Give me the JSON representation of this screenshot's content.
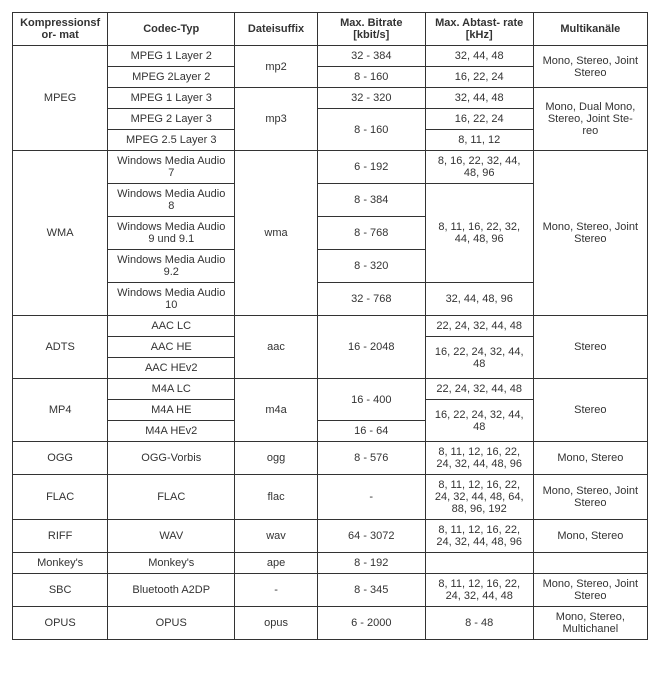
{
  "table": {
    "headers": {
      "format": "Kompressionsfor-\nmat",
      "codec": "Codec-Typ",
      "suffix": "Dateisuffix",
      "bitrate": "Max. Bitrate\n[kbit/s]",
      "samplerate": "Max. Abtast-\nrate [kHz]",
      "multi": "Multikanäle"
    },
    "mpeg": {
      "format": "MPEG",
      "codec1": "MPEG 1 Layer 2",
      "codec2": "MPEG 2Layer 2",
      "codec3": "MPEG 1 Layer 3",
      "codec4": "MPEG 2 Layer 3",
      "codec5": "MPEG 2.5 Layer 3",
      "suffix1": "mp2",
      "suffix2": "mp3",
      "bitrate1": "32 - 384",
      "bitrate2": "8 - 160",
      "bitrate3": "32 - 320",
      "bitrate4": "8 - 160",
      "sample1": "32, 44, 48",
      "sample2": "16, 22, 24",
      "sample3": "32, 44, 48",
      "sample4": "16, 22, 24",
      "sample5": "8, 11, 12",
      "multi1": "Mono, Stereo, Joint Stereo",
      "multi2": "Mono, Dual Mono, Stereo, Joint Ste-\nreo"
    },
    "wma": {
      "format": "WMA",
      "codec1": "Windows Media Audio 7",
      "codec2": "Windows Media Audio 8",
      "codec3": "Windows Media Audio 9 und 9.1",
      "codec4": "Windows Media Audio 9.2",
      "codec5": "Windows Media Audio 10",
      "suffix": "wma",
      "bitrate1": "6 - 192",
      "bitrate2": "8 - 384",
      "bitrate3": "8 - 768",
      "bitrate4": "8 - 320",
      "bitrate5": "32 - 768",
      "sample1": "8, 16, 22, 32, 44, 48, 96",
      "sample2": "8, 11, 16, 22, 32, 44, 48, 96",
      "sample3": "32, 44, 48, 96",
      "multi": "Mono, Stereo, Joint Stereo"
    },
    "adts": {
      "format": "ADTS",
      "codec1": "AAC LC",
      "codec2": "AAC HE",
      "codec3": "AAC HEv2",
      "suffix": "aac",
      "bitrate": "16 - 2048",
      "sample1": "22, 24, 32, 44, 48",
      "sample2": "16, 22, 24, 32, 44, 48",
      "multi": "Stereo"
    },
    "mp4": {
      "format": "MP4",
      "codec1": "M4A LC",
      "codec2": "M4A HE",
      "codec3": "M4A HEv2",
      "suffix": "m4a",
      "bitrate1": "16 - 400",
      "bitrate2": "16 - 64",
      "sample1": "22, 24, 32, 44, 48",
      "sample2": "16, 22, 24, 32, 44, 48",
      "multi": "Stereo"
    },
    "ogg": {
      "format": "OGG",
      "codec": "OGG-Vorbis",
      "suffix": "ogg",
      "bitrate": "8 - 576",
      "sample": "8, 11, 12, 16, 22, 24, 32, 44, 48, 96",
      "multi": "Mono, Stereo"
    },
    "flac": {
      "format": "FLAC",
      "codec": "FLAC",
      "suffix": "flac",
      "bitrate": "-",
      "sample": "8, 11, 12, 16, 22, 24, 32, 44, 48, 64, 88, 96, 192",
      "multi": "Mono, Stereo, Joint Stereo"
    },
    "riff": {
      "format": "RIFF",
      "codec": "WAV",
      "suffix": "wav",
      "bitrate": "64 - 3072",
      "sample": "8, 11, 12, 16, 22, 24, 32, 44, 48, 96",
      "multi": "Mono, Stereo"
    },
    "monkey": {
      "format": "Monkey's",
      "codec": "Monkey's",
      "suffix": "ape",
      "bitrate": "8 - 192",
      "sample": "",
      "multi": ""
    },
    "sbc": {
      "format": "SBC",
      "codec": "Bluetooth A2DP",
      "suffix": "-",
      "bitrate": "8 - 345",
      "sample": "8, 11, 12, 16, 22, 24, 32, 44, 48",
      "multi": "Mono, Stereo, Joint Stereo"
    },
    "opus": {
      "format": "OPUS",
      "codec": "OPUS",
      "suffix": "opus",
      "bitrate": "6 - 2000",
      "sample": "8 - 48",
      "multi": "Mono, Stereo, Multichanel"
    }
  },
  "style": {
    "font_family": "Arial, Helvetica, sans-serif",
    "font_size_pt": 11,
    "text_color": "#333333",
    "border_color": "#333333",
    "background_color": "#ffffff"
  }
}
